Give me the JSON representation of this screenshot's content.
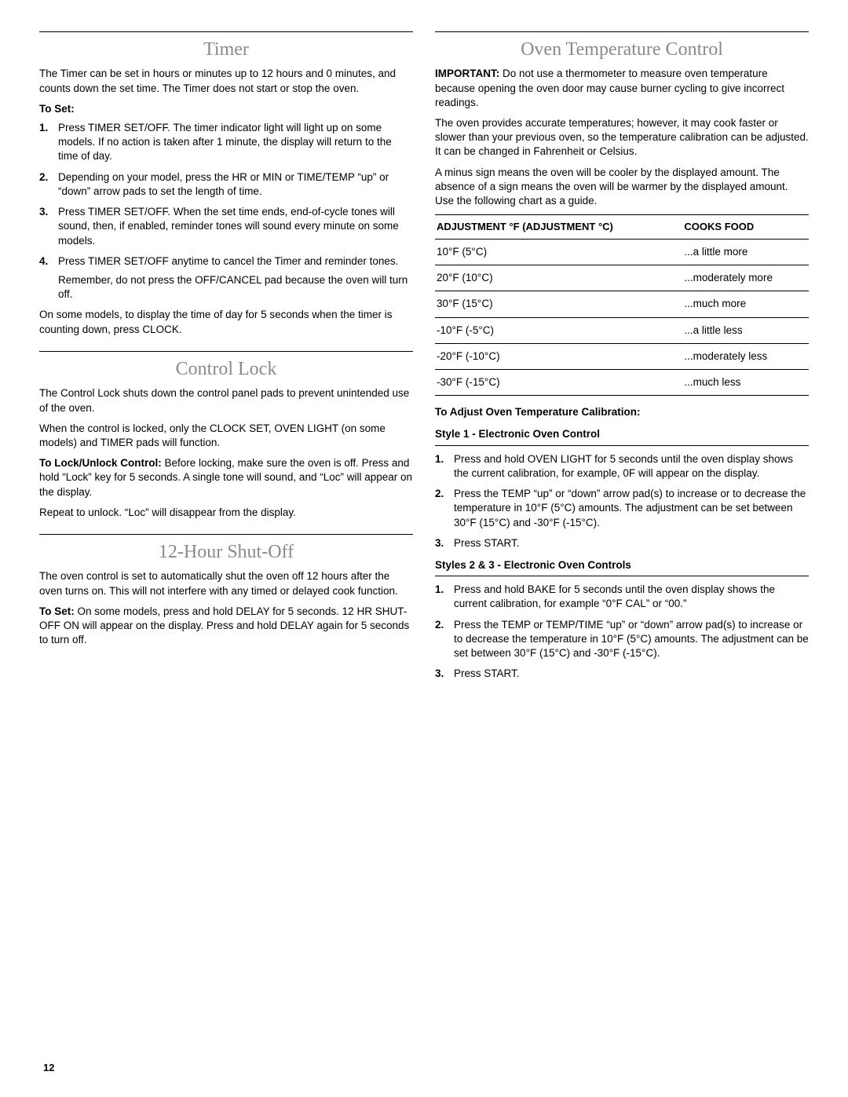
{
  "page_number": "12",
  "left": {
    "timer": {
      "title": "Timer",
      "intro": "The Timer can be set in hours or minutes up to 12 hours and 0 minutes, and counts down the set time. The Timer does not start or stop the oven.",
      "to_set_label": "To Set:",
      "steps": [
        "Press TIMER SET/OFF. The timer indicator light will light up on some models. If no action is taken after 1 minute, the display will return to the time of day.",
        "Depending on your model, press the HR or MIN or TIME/TEMP “up” or “down” arrow pads to set the length of time.",
        "Press TIMER SET/OFF. When the set time ends, end-of-cycle tones will sound, then, if enabled, reminder tones will sound every minute on some models.",
        "Press TIMER SET/OFF anytime to cancel the Timer and reminder tones."
      ],
      "step4_follow": "Remember, do not press the OFF/CANCEL pad because the oven will turn off.",
      "outro": "On some models, to display the time of day for 5 seconds when the timer is counting down, press CLOCK."
    },
    "control_lock": {
      "title": "Control Lock",
      "p1": "The Control Lock shuts down the control panel pads to prevent unintended use of the oven.",
      "p2": "When the control is locked, only the CLOCK SET, OVEN LIGHT (on some models) and TIMER pads will function.",
      "p3_lead": "To Lock/Unlock Control:",
      "p3_rest": " Before locking, make sure the oven is off. Press and hold “Lock” key for 5 seconds. A single tone will sound, and “Loc” will appear on the display.",
      "p4": "Repeat to unlock. “Loc” will disappear from the display."
    },
    "shut_off": {
      "title": "12-Hour Shut-Off",
      "p1": "The oven control is set to automatically shut the oven off 12 hours after the oven turns on. This will not interfere with any timed or delayed cook function.",
      "p2_lead": "To Set:",
      "p2_rest": " On some models, press and hold DELAY for 5 seconds. 12 HR SHUT-OFF ON will appear on the display. Press and hold DELAY again for 5 seconds to turn off."
    }
  },
  "right": {
    "title": "Oven Temperature Control",
    "p1_lead": "IMPORTANT:",
    "p1_rest": " Do not use a thermometer to measure oven temperature because opening the oven door may cause burner cycling to give incorrect readings.",
    "p2": "The oven provides accurate temperatures; however, it may cook faster or slower than your previous oven, so the temperature calibration can be adjusted. It can be changed in Fahrenheit or Celsius.",
    "p3": "A minus sign means the oven will be cooler by the displayed amount. The absence of a sign means the oven will be warmer by the displayed amount. Use the following chart as a guide.",
    "table": {
      "head_a": "ADJUSTMENT °F (ADJUSTMENT °C)",
      "head_b": "COOKS FOOD",
      "rows": [
        [
          "10°F (5°C)",
          "...a little more"
        ],
        [
          "20°F (10°C)",
          "...moderately more"
        ],
        [
          "30°F (15°C)",
          "...much more"
        ],
        [
          "-10°F (-5°C)",
          "...a little less"
        ],
        [
          "-20°F (-10°C)",
          "...moderately less"
        ],
        [
          "-30°F (-15°C)",
          "...much less"
        ]
      ]
    },
    "calib_head": "To Adjust Oven Temperature Calibration:",
    "style1": {
      "head": "Style 1 - Electronic Oven Control",
      "steps": [
        "Press and hold OVEN LIGHT for 5 seconds until the oven display shows the current calibration, for example,  0F will appear on the display.",
        "Press the TEMP “up” or “down” arrow pad(s) to increase or to decrease the temperature in 10°F (5°C) amounts. The adjustment can be set between 30°F (15°C) and -30°F (-15°C).",
        "Press START."
      ]
    },
    "style23": {
      "head": "Styles 2 & 3 - Electronic Oven Controls",
      "steps": [
        "Press and hold BAKE for 5 seconds until the oven display shows the current calibration, for example “0°F CAL” or “00.”",
        "Press the TEMP or TEMP/TIME “up” or “down” arrow pad(s) to increase or to decrease the temperature in 10°F (5°C) amounts. The adjustment can be set between 30°F (15°C) and -30°F (-15°C).",
        "Press START."
      ]
    }
  }
}
